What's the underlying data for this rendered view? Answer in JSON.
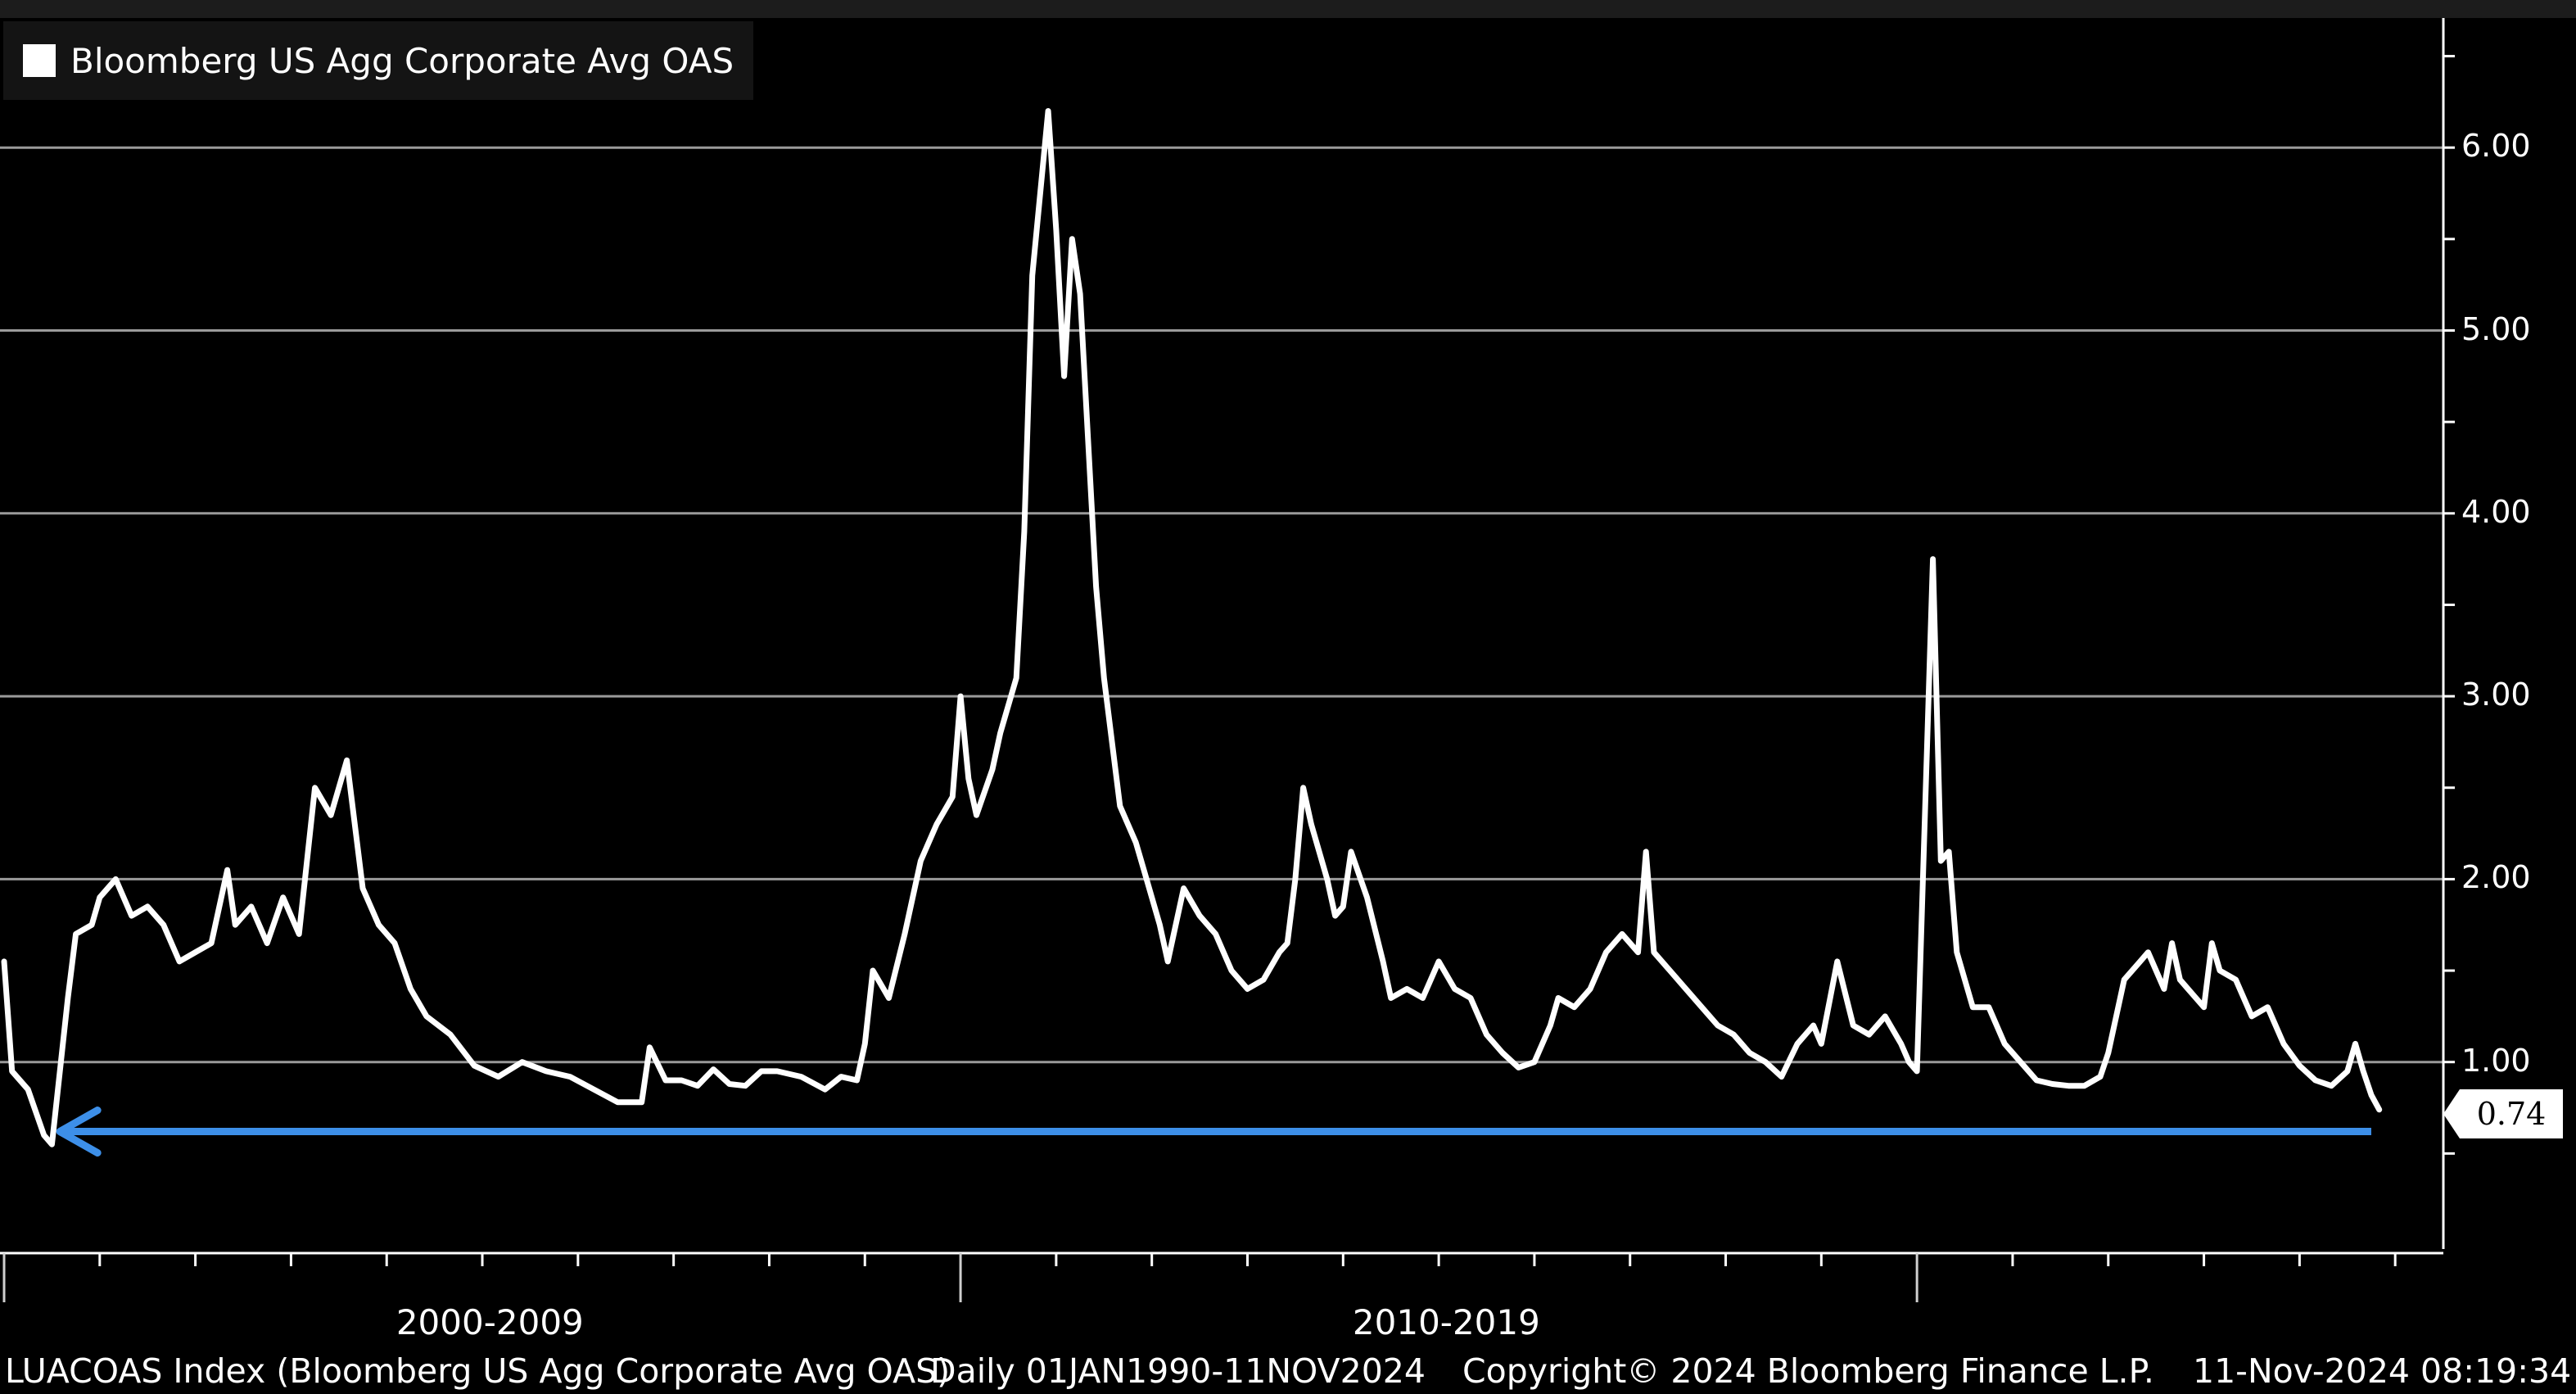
{
  "chart_data": {
    "type": "line",
    "legend": {
      "label": "Bloomberg US Agg Corporate Avg OAS",
      "position": "top-left",
      "swatch_color": "#ffffff"
    },
    "ylim": [
      0.0,
      6.6
    ],
    "yticks": [
      1.0,
      2.0,
      3.0,
      4.0,
      5.0,
      6.0
    ],
    "ytick_labels": [
      "1.00",
      "2.00",
      "3.00",
      "4.00",
      "5.00",
      "6.00"
    ],
    "grid": true,
    "xlim": [
      "2000-01-01",
      "2024-12-31"
    ],
    "xtick_labels": [
      {
        "label": "2000-2009",
        "start": "2000-01-01",
        "end": "2009-12-31"
      },
      {
        "label": "2010-2019",
        "start": "2010-01-01",
        "end": "2019-12-31"
      }
    ],
    "last_value_label": "0.74",
    "series": [
      {
        "name": "Bloomberg US Agg Corporate Avg OAS",
        "color": "#ffffff",
        "points": [
          [
            "2000-01",
            1.55
          ],
          [
            "2000-02",
            0.95
          ],
          [
            "2000-04",
            0.85
          ],
          [
            "2000-06",
            0.6
          ],
          [
            "2000-07",
            0.55
          ],
          [
            "2000-09",
            1.35
          ],
          [
            "2000-10",
            1.7
          ],
          [
            "2000-12",
            1.75
          ],
          [
            "2001-01",
            1.9
          ],
          [
            "2001-03",
            2.0
          ],
          [
            "2001-05",
            1.8
          ],
          [
            "2001-07",
            1.85
          ],
          [
            "2001-09",
            1.75
          ],
          [
            "2001-11",
            1.55
          ],
          [
            "2002-01",
            1.6
          ],
          [
            "2002-03",
            1.65
          ],
          [
            "2002-05",
            2.05
          ],
          [
            "2002-06",
            1.75
          ],
          [
            "2002-08",
            1.85
          ],
          [
            "2002-10",
            1.65
          ],
          [
            "2002-12",
            1.9
          ],
          [
            "2003-02",
            1.7
          ],
          [
            "2003-04",
            2.5
          ],
          [
            "2003-06",
            2.35
          ],
          [
            "2003-08",
            2.65
          ],
          [
            "2003-10",
            1.95
          ],
          [
            "2003-12",
            1.75
          ],
          [
            "2004-02",
            1.65
          ],
          [
            "2004-04",
            1.4
          ],
          [
            "2004-06",
            1.25
          ],
          [
            "2004-09",
            1.15
          ],
          [
            "2004-12",
            0.98
          ],
          [
            "2005-03",
            0.92
          ],
          [
            "2005-06",
            1.0
          ],
          [
            "2005-09",
            0.95
          ],
          [
            "2005-12",
            0.92
          ],
          [
            "2006-03",
            0.85
          ],
          [
            "2006-06",
            0.78
          ],
          [
            "2006-09",
            0.78
          ],
          [
            "2006-10",
            1.08
          ],
          [
            "2006-12",
            0.9
          ],
          [
            "2007-02",
            0.9
          ],
          [
            "2007-04",
            0.87
          ],
          [
            "2007-06",
            0.96
          ],
          [
            "2007-08",
            0.88
          ],
          [
            "2007-10",
            0.87
          ],
          [
            "2007-12",
            0.95
          ],
          [
            "2008-02",
            0.95
          ],
          [
            "2008-05",
            0.92
          ],
          [
            "2008-08",
            0.85
          ],
          [
            "2008-10",
            0.92
          ],
          [
            "2008-12",
            0.9
          ],
          [
            "2009-01",
            1.1
          ],
          [
            "2009-02",
            1.5
          ],
          [
            "2009-04",
            1.35
          ],
          [
            "2009-06",
            1.7
          ],
          [
            "2009-08",
            2.1
          ],
          [
            "2009-10",
            2.3
          ],
          [
            "2009-12",
            2.45
          ],
          [
            "2010-01",
            3.0
          ],
          [
            "2010-02",
            2.55
          ],
          [
            "2010-03",
            2.35
          ],
          [
            "2010-05",
            2.6
          ],
          [
            "2010-06",
            2.8
          ],
          [
            "2010-08",
            3.1
          ],
          [
            "2010-09",
            3.9
          ],
          [
            "2010-10",
            5.3
          ],
          [
            "2010-11",
            5.75
          ],
          [
            "2010-12",
            6.2
          ],
          [
            "2011-01",
            5.55
          ],
          [
            "2011-02",
            4.75
          ],
          [
            "2011-03",
            5.5
          ],
          [
            "2011-04",
            5.2
          ],
          [
            "2011-06",
            3.6
          ],
          [
            "2011-07",
            3.1
          ],
          [
            "2011-09",
            2.4
          ],
          [
            "2011-11",
            2.2
          ],
          [
            "2011-12",
            2.05
          ],
          [
            "2012-02",
            1.75
          ],
          [
            "2012-03",
            1.55
          ],
          [
            "2012-05",
            1.95
          ],
          [
            "2012-07",
            1.8
          ],
          [
            "2012-09",
            1.7
          ],
          [
            "2012-11",
            1.5
          ],
          [
            "2013-01",
            1.4
          ],
          [
            "2013-03",
            1.45
          ],
          [
            "2013-05",
            1.6
          ],
          [
            "2013-06",
            1.65
          ],
          [
            "2013-07",
            2.0
          ],
          [
            "2013-08",
            2.5
          ],
          [
            "2013-09",
            2.3
          ],
          [
            "2013-11",
            2.0
          ],
          [
            "2013-12",
            1.8
          ],
          [
            "2014-01",
            1.85
          ],
          [
            "2014-02",
            2.15
          ],
          [
            "2014-04",
            1.9
          ],
          [
            "2014-06",
            1.55
          ],
          [
            "2014-07",
            1.35
          ],
          [
            "2014-09",
            1.4
          ],
          [
            "2014-11",
            1.35
          ],
          [
            "2015-01",
            1.55
          ],
          [
            "2015-03",
            1.4
          ],
          [
            "2015-05",
            1.35
          ],
          [
            "2015-07",
            1.15
          ],
          [
            "2015-09",
            1.05
          ],
          [
            "2015-11",
            0.97
          ],
          [
            "2016-01",
            1.0
          ],
          [
            "2016-03",
            1.2
          ],
          [
            "2016-04",
            1.35
          ],
          [
            "2016-06",
            1.3
          ],
          [
            "2016-08",
            1.4
          ],
          [
            "2016-10",
            1.6
          ],
          [
            "2016-12",
            1.7
          ],
          [
            "2017-02",
            1.6
          ],
          [
            "2017-03",
            2.15
          ],
          [
            "2017-04",
            1.6
          ],
          [
            "2017-06",
            1.5
          ],
          [
            "2017-08",
            1.4
          ],
          [
            "2017-10",
            1.3
          ],
          [
            "2017-12",
            1.2
          ],
          [
            "2018-02",
            1.15
          ],
          [
            "2018-04",
            1.05
          ],
          [
            "2018-06",
            1.0
          ],
          [
            "2018-08",
            0.92
          ],
          [
            "2018-10",
            1.1
          ],
          [
            "2018-12",
            1.2
          ],
          [
            "2019-01",
            1.1
          ],
          [
            "2019-03",
            1.55
          ],
          [
            "2019-05",
            1.2
          ],
          [
            "2019-07",
            1.15
          ],
          [
            "2019-09",
            1.25
          ],
          [
            "2019-11",
            1.1
          ],
          [
            "2019-12",
            1.0
          ],
          [
            "2020-01",
            0.95
          ],
          [
            "2020-03",
            3.75
          ],
          [
            "2020-04",
            2.1
          ],
          [
            "2020-05",
            2.15
          ],
          [
            "2020-06",
            1.6
          ],
          [
            "2020-08",
            1.3
          ],
          [
            "2020-10",
            1.3
          ],
          [
            "2020-12",
            1.1
          ],
          [
            "2021-02",
            1.0
          ],
          [
            "2021-04",
            0.9
          ],
          [
            "2021-06",
            0.88
          ],
          [
            "2021-08",
            0.87
          ],
          [
            "2021-10",
            0.87
          ],
          [
            "2021-12",
            0.92
          ],
          [
            "2022-01",
            1.05
          ],
          [
            "2022-03",
            1.45
          ],
          [
            "2022-05",
            1.55
          ],
          [
            "2022-06",
            1.6
          ],
          [
            "2022-08",
            1.4
          ],
          [
            "2022-09",
            1.65
          ],
          [
            "2022-10",
            1.45
          ],
          [
            "2022-12",
            1.35
          ],
          [
            "2023-01",
            1.3
          ],
          [
            "2023-02",
            1.65
          ],
          [
            "2023-03",
            1.5
          ],
          [
            "2023-05",
            1.45
          ],
          [
            "2023-07",
            1.25
          ],
          [
            "2023-09",
            1.3
          ],
          [
            "2023-11",
            1.1
          ],
          [
            "2024-01",
            0.98
          ],
          [
            "2024-03",
            0.9
          ],
          [
            "2024-05",
            0.87
          ],
          [
            "2024-07",
            0.95
          ],
          [
            "2024-08",
            1.1
          ],
          [
            "2024-09",
            0.95
          ],
          [
            "2024-10",
            0.82
          ],
          [
            "2024-11",
            0.74
          ]
        ]
      }
    ],
    "annotations": [
      {
        "type": "arrow",
        "color": "#3d8fe8",
        "direction": "left",
        "y": 0.62,
        "x_start": "2024-10",
        "x_end": "2000-08"
      }
    ]
  },
  "footer": {
    "ticker": "LUACOAS Index (Bloomberg US Agg Corporate Avg OAS)",
    "range": "Daily 01JAN1990-11NOV2024",
    "copyright": "Copyright© 2024 Bloomberg Finance L.P.",
    "timestamp": "11-Nov-2024 08:19:34"
  }
}
